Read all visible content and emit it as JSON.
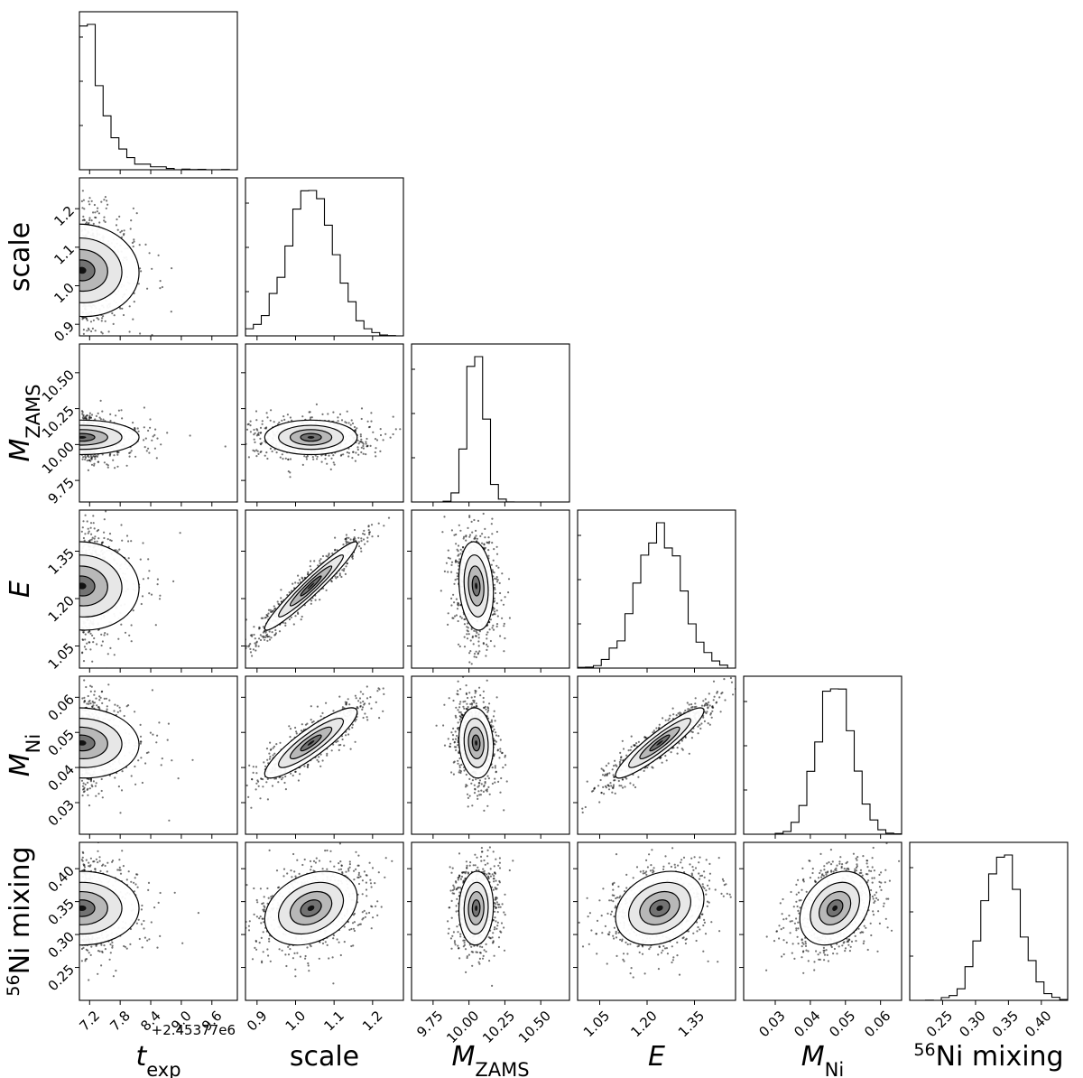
{
  "chart_data": {
    "type": "corner",
    "parameters": [
      {
        "name": "t_exp",
        "label_main": "t",
        "label_sub": "exp",
        "italic": true,
        "offset_label": "+2.45377e6",
        "range": [
          7.0,
          10.1
        ],
        "ticks": [
          7.2,
          7.8,
          8.4,
          9.0,
          9.6
        ],
        "tick_labels": [
          "7.2",
          "7.8",
          "8.4",
          "9.0",
          "9.6"
        ],
        "peak": 7.05,
        "spread": 0.35,
        "skew": "right"
      },
      {
        "name": "scale",
        "label_main": "scale",
        "label_sub": "",
        "italic": false,
        "range": [
          0.87,
          1.28
        ],
        "ticks": [
          0.9,
          1.0,
          1.1,
          1.2
        ],
        "tick_labels": [
          "0.9",
          "1.0",
          "1.1",
          "1.2"
        ],
        "peak": 1.04,
        "spread": 0.06
      },
      {
        "name": "M_ZAMS",
        "label_main": "M",
        "label_sub": "ZAMS",
        "italic": true,
        "range": [
          9.6,
          10.7
        ],
        "ticks": [
          9.75,
          10.0,
          10.25,
          10.5
        ],
        "tick_labels": [
          "9.75",
          "10.00",
          "10.25",
          "10.50"
        ],
        "peak": 10.05,
        "spread": 0.06
      },
      {
        "name": "E",
        "label_main": "E",
        "label_sub": "",
        "italic": true,
        "range": [
          0.98,
          1.48
        ],
        "ticks": [
          1.05,
          1.2,
          1.35
        ],
        "tick_labels": [
          "1.05",
          "1.20",
          "1.35"
        ],
        "peak": 1.24,
        "spread": 0.07
      },
      {
        "name": "M_Ni",
        "label_main": "M",
        "label_sub": "Ni",
        "italic": true,
        "range": [
          0.021,
          0.066
        ],
        "ticks": [
          0.03,
          0.04,
          0.05,
          0.06
        ],
        "tick_labels": [
          "0.03",
          "0.04",
          "0.05",
          "0.06"
        ],
        "peak": 0.047,
        "spread": 0.005
      },
      {
        "name": "Ni56_mixing",
        "label_main": "Ni mixing",
        "label_sup": "56",
        "label_sub": "",
        "italic": false,
        "range": [
          0.2,
          0.44
        ],
        "ticks": [
          0.25,
          0.3,
          0.35,
          0.4
        ],
        "tick_labels": [
          "0.25",
          "0.30",
          "0.35",
          "0.40"
        ],
        "peak": 0.34,
        "spread": 0.028
      }
    ],
    "correlations": [
      [
        1.0,
        -0.05,
        0.0,
        -0.05,
        -0.05,
        0.0
      ],
      [
        -0.05,
        1.0,
        0.0,
        0.96,
        0.88,
        0.3
      ],
      [
        0.0,
        0.0,
        1.0,
        -0.15,
        -0.1,
        0.05
      ],
      [
        -0.05,
        0.96,
        -0.15,
        1.0,
        0.92,
        0.25
      ],
      [
        -0.05,
        0.88,
        -0.1,
        0.92,
        1.0,
        0.3
      ],
      [
        0.0,
        0.3,
        0.05,
        0.25,
        0.3,
        1.0
      ]
    ]
  }
}
